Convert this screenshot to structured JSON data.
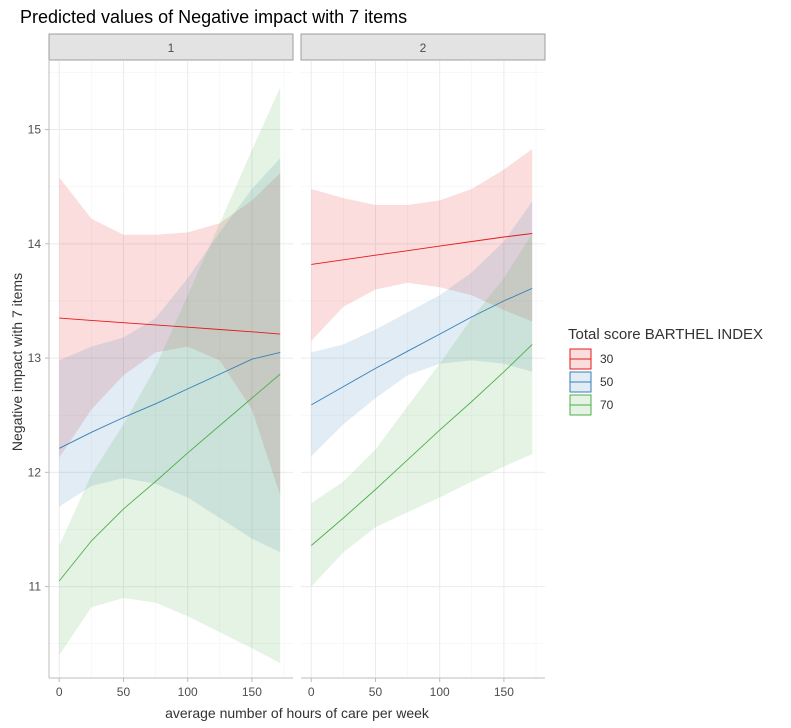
{
  "chart_data": {
    "type": "line",
    "title": "Predicted values of Negative impact with 7 items",
    "xlabel": "average number of hours of care per week",
    "ylabel": "Negative impact with 7 items",
    "xlim": [
      -8,
      182
    ],
    "ylim": [
      10.2,
      15.6
    ],
    "x_ticks": [
      0,
      50,
      100,
      150
    ],
    "y_ticks": [
      11,
      12,
      13,
      14,
      15
    ],
    "grid": true,
    "legend": {
      "title": "Total score BARTHEL INDEX",
      "placement": "right"
    },
    "panels": [
      {
        "label": "1",
        "series": [
          {
            "name": "30",
            "color": "#e41a1c",
            "x": [
              0,
              25,
              50,
              75,
              100,
              125,
              150,
              172
            ],
            "y": [
              13.35,
              13.33,
              13.31,
              13.29,
              13.27,
              13.25,
              13.23,
              13.21
            ],
            "lower": [
              12.13,
              12.55,
              12.85,
              13.05,
              13.1,
              12.98,
              12.55,
              11.8
            ],
            "upper": [
              14.58,
              14.22,
              14.08,
              14.08,
              14.1,
              14.18,
              14.38,
              14.62
            ]
          },
          {
            "name": "50",
            "color": "#377eb8",
            "x": [
              0,
              25,
              50,
              75,
              100,
              125,
              150,
              172
            ],
            "y": [
              12.21,
              12.35,
              12.48,
              12.6,
              12.73,
              12.86,
              12.99,
              13.05
            ],
            "lower": [
              11.7,
              11.88,
              11.95,
              11.9,
              11.78,
              11.6,
              11.42,
              11.3
            ],
            "upper": [
              12.98,
              13.1,
              13.18,
              13.35,
              13.7,
              14.1,
              14.48,
              14.75
            ]
          },
          {
            "name": "70",
            "color": "#4daf4a",
            "x": [
              0,
              25,
              50,
              75,
              100,
              125,
              150,
              172
            ],
            "y": [
              11.05,
              11.4,
              11.68,
              11.92,
              12.17,
              12.41,
              12.65,
              12.86
            ],
            "lower": [
              10.4,
              10.82,
              10.9,
              10.86,
              10.74,
              10.6,
              10.46,
              10.33
            ],
            "upper": [
              11.36,
              11.98,
              12.42,
              12.92,
              13.55,
              14.18,
              14.82,
              15.37
            ]
          }
        ]
      },
      {
        "label": "2",
        "series": [
          {
            "name": "30",
            "color": "#e41a1c",
            "x": [
              0,
              25,
              50,
              75,
              100,
              125,
              150,
              172
            ],
            "y": [
              13.82,
              13.86,
              13.9,
              13.94,
              13.98,
              14.02,
              14.06,
              14.09
            ],
            "lower": [
              13.15,
              13.45,
              13.6,
              13.66,
              13.62,
              13.55,
              13.42,
              13.32
            ],
            "upper": [
              14.48,
              14.4,
              14.34,
              14.34,
              14.38,
              14.48,
              14.65,
              14.83
            ]
          },
          {
            "name": "50",
            "color": "#377eb8",
            "x": [
              0,
              25,
              50,
              75,
              100,
              125,
              150,
              172
            ],
            "y": [
              12.59,
              12.75,
              12.91,
              13.06,
              13.21,
              13.36,
              13.5,
              13.61
            ],
            "lower": [
              12.14,
              12.42,
              12.65,
              12.85,
              12.95,
              12.98,
              12.95,
              12.88
            ],
            "upper": [
              13.05,
              13.12,
              13.25,
              13.4,
              13.55,
              13.75,
              14.02,
              14.37
            ]
          },
          {
            "name": "70",
            "color": "#4daf4a",
            "x": [
              0,
              25,
              50,
              75,
              100,
              125,
              150,
              172
            ],
            "y": [
              11.36,
              11.6,
              11.85,
              12.11,
              12.37,
              12.62,
              12.88,
              13.12
            ],
            "lower": [
              11.0,
              11.3,
              11.52,
              11.65,
              11.78,
              11.92,
              12.05,
              12.16
            ],
            "upper": [
              11.73,
              11.92,
              12.2,
              12.58,
              12.95,
              13.35,
              13.7,
              14.09
            ]
          }
        ]
      }
    ]
  }
}
